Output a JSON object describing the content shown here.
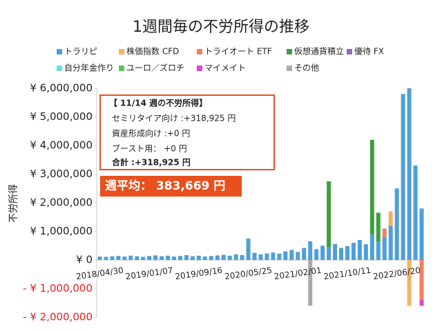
{
  "chart_data": {
    "type": "stacked_bar",
    "title": "1週間毎の不労所得の推移",
    "y_label": "不労所得",
    "categories": [
      "2018/04/30",
      null,
      null,
      null,
      null,
      null,
      null,
      null,
      "2019/01/07",
      null,
      null,
      null,
      null,
      null,
      null,
      null,
      "2019/09/16",
      null,
      null,
      null,
      null,
      null,
      null,
      null,
      "2020/05/25",
      null,
      null,
      null,
      null,
      null,
      null,
      null,
      "2021/02/01",
      null,
      null,
      null,
      null,
      null,
      null,
      null,
      "2021/10/11",
      null,
      null,
      null,
      null,
      null,
      null,
      null,
      "2022/06/20",
      null,
      null,
      null,
      null
    ],
    "series": [
      {
        "name": "トラリピ",
        "color": "#4f9fd8",
        "values": [
          120000,
          110000,
          130000,
          140000,
          120000,
          150000,
          130000,
          110000,
          140000,
          160000,
          130000,
          150000,
          120000,
          140000,
          170000,
          130000,
          150000,
          120000,
          140000,
          160000,
          180000,
          150000,
          200000,
          170000,
          750000,
          250000,
          200000,
          230000,
          260000,
          220000,
          300000,
          350000,
          280000,
          420000,
          650000,
          380000,
          500000,
          450000,
          560000,
          420000,
          480000,
          600000,
          700000,
          550000,
          900000,
          650000,
          800000,
          1200000,
          2500000,
          5800000,
          6000000,
          3300000,
          1800000
        ]
      },
      {
        "name": "株価指数 CFD",
        "color": "#f4b266",
        "values": [
          0,
          0,
          0,
          0,
          0,
          0,
          0,
          0,
          0,
          0,
          0,
          0,
          0,
          0,
          0,
          0,
          0,
          0,
          0,
          0,
          0,
          0,
          0,
          0,
          0,
          0,
          0,
          0,
          0,
          0,
          0,
          0,
          0,
          0,
          0,
          0,
          0,
          0,
          0,
          0,
          0,
          0,
          0,
          0,
          0,
          0,
          0,
          500000,
          0,
          0,
          -1600000,
          0,
          0
        ]
      },
      {
        "name": "トライオート ETF",
        "color": "#f08060",
        "values": [
          0,
          0,
          0,
          0,
          0,
          0,
          0,
          0,
          0,
          0,
          0,
          0,
          0,
          0,
          0,
          0,
          0,
          0,
          0,
          0,
          0,
          0,
          0,
          0,
          0,
          0,
          0,
          0,
          0,
          0,
          0,
          0,
          0,
          0,
          0,
          0,
          0,
          0,
          0,
          0,
          0,
          0,
          0,
          0,
          0,
          0,
          300000,
          0,
          0,
          0,
          0,
          0,
          -1400000
        ]
      },
      {
        "name": "仮想通貨積立",
        "color": "#3e9e3e",
        "values": [
          0,
          0,
          0,
          0,
          0,
          0,
          0,
          0,
          0,
          0,
          0,
          0,
          0,
          0,
          0,
          0,
          0,
          0,
          0,
          0,
          0,
          0,
          0,
          0,
          0,
          0,
          0,
          0,
          0,
          0,
          0,
          0,
          0,
          0,
          0,
          0,
          0,
          2300000,
          0,
          0,
          0,
          0,
          0,
          0,
          3300000,
          1000000,
          0,
          0,
          0,
          0,
          0,
          0,
          0
        ]
      },
      {
        "name": "優待 FX",
        "color": "#8e6bbf",
        "values": [
          0,
          0,
          0,
          0,
          0,
          0,
          0,
          0,
          0,
          0,
          0,
          0,
          0,
          0,
          0,
          0,
          0,
          0,
          0,
          0,
          0,
          0,
          0,
          0,
          0,
          0,
          0,
          0,
          0,
          0,
          0,
          0,
          0,
          0,
          0,
          0,
          0,
          0,
          0,
          0,
          0,
          0,
          0,
          0,
          0,
          0,
          0,
          0,
          0,
          0,
          0,
          0,
          0
        ]
      },
      {
        "name": "自分年金作り",
        "color": "#66e0e8",
        "values": [
          0,
          0,
          0,
          0,
          0,
          0,
          0,
          0,
          0,
          0,
          0,
          0,
          0,
          0,
          0,
          0,
          0,
          0,
          0,
          0,
          0,
          0,
          0,
          0,
          0,
          0,
          0,
          0,
          0,
          0,
          0,
          0,
          0,
          0,
          0,
          0,
          0,
          0,
          0,
          0,
          0,
          0,
          0,
          0,
          0,
          0,
          0,
          0,
          0,
          0,
          0,
          0,
          0
        ]
      },
      {
        "name": "ユーロ／ズロチ",
        "color": "#5ec25e",
        "values": [
          0,
          0,
          0,
          0,
          0,
          0,
          0,
          0,
          0,
          0,
          0,
          0,
          0,
          0,
          0,
          0,
          0,
          0,
          0,
          0,
          0,
          0,
          0,
          0,
          0,
          0,
          0,
          0,
          0,
          0,
          0,
          0,
          0,
          0,
          0,
          0,
          0,
          0,
          0,
          0,
          0,
          0,
          0,
          0,
          0,
          0,
          0,
          0,
          0,
          0,
          0,
          0,
          0
        ]
      },
      {
        "name": "マイメイト",
        "color": "#d946d9",
        "values": [
          0,
          0,
          0,
          0,
          0,
          0,
          0,
          0,
          0,
          0,
          0,
          0,
          0,
          0,
          0,
          0,
          0,
          0,
          0,
          0,
          0,
          0,
          0,
          0,
          0,
          0,
          0,
          0,
          0,
          0,
          0,
          0,
          0,
          0,
          0,
          0,
          0,
          0,
          0,
          0,
          0,
          0,
          0,
          0,
          0,
          0,
          0,
          0,
          0,
          0,
          0,
          0,
          -200000
        ]
      },
      {
        "name": "その他",
        "color": "#aaaaaa",
        "values": [
          0,
          0,
          0,
          0,
          0,
          0,
          0,
          0,
          0,
          0,
          0,
          0,
          0,
          0,
          0,
          0,
          0,
          0,
          0,
          0,
          0,
          0,
          0,
          0,
          0,
          0,
          0,
          0,
          0,
          0,
          0,
          0,
          0,
          0,
          -1600000,
          0,
          0,
          0,
          0,
          0,
          0,
          0,
          0,
          0,
          0,
          0,
          0,
          0,
          0,
          0,
          0,
          0,
          0
        ]
      }
    ],
    "ylim": [
      -2000000,
      6000000
    ],
    "yticks": [
      {
        "value": -2000000,
        "label": "- ¥ 2,000,000"
      },
      {
        "value": -1000000,
        "label": "- ¥ 1,000,000"
      },
      {
        "value": 0,
        "label": "¥ 0"
      },
      {
        "value": 1000000,
        "label": "¥ 1,000,000"
      },
      {
        "value": 2000000,
        "label": "¥ 2,000,000"
      },
      {
        "value": 3000000,
        "label": "¥ 3,000,000"
      },
      {
        "value": 4000000,
        "label": "¥ 4,000,000"
      },
      {
        "value": 5000000,
        "label": "¥ 5,000,000"
      },
      {
        "value": 6000000,
        "label": "¥ 6,000,000"
      }
    ],
    "annotation": {
      "heading": "【 11/14 週の不労所得】",
      "lines": [
        "セミリタイア向け :+318,925 円",
        "資産形成向け :+0 円",
        "ブースト用： +0 円"
      ],
      "total": "合計 :+318,925 円"
    },
    "average_label": "週平均： 383,669 円"
  }
}
